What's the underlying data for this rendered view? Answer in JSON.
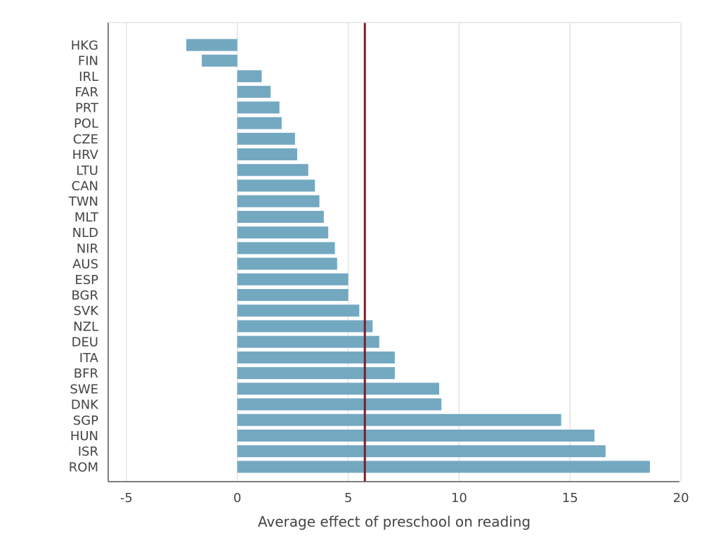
{
  "chart_data": {
    "type": "bar",
    "orientation": "horizontal",
    "xlabel": "Average effect of preschool on reading",
    "xlim": [
      -6,
      20
    ],
    "xticks": [
      -5,
      0,
      5,
      10,
      15,
      20
    ],
    "xtick_labels": [
      "-5",
      "0",
      "5",
      "10",
      "15",
      "20"
    ],
    "grid": "vertical",
    "categories": [
      "HKG",
      "FIN",
      "IRL",
      "FAR",
      "PRT",
      "POL",
      "CZE",
      "HRV",
      "LTU",
      "CAN",
      "TWN",
      "MLT",
      "NLD",
      "NIR",
      "AUS",
      "ESP",
      "BGR",
      "SVK",
      "NZL",
      "DEU",
      "ITA",
      "BFR",
      "SWE",
      "DNK",
      "SGP",
      "HUN",
      "ISR",
      "ROM"
    ],
    "values": [
      -2.3,
      -1.6,
      1.1,
      1.5,
      1.9,
      2.0,
      2.6,
      2.7,
      3.2,
      3.5,
      3.7,
      3.9,
      4.1,
      4.4,
      4.5,
      5.0,
      5.0,
      5.5,
      6.1,
      6.4,
      7.1,
      7.1,
      9.1,
      9.2,
      14.6,
      16.1,
      16.6,
      18.6
    ],
    "reference_line": {
      "x": 5.75,
      "color": "#7a1f26"
    },
    "bar_color": "#73a8c1"
  }
}
